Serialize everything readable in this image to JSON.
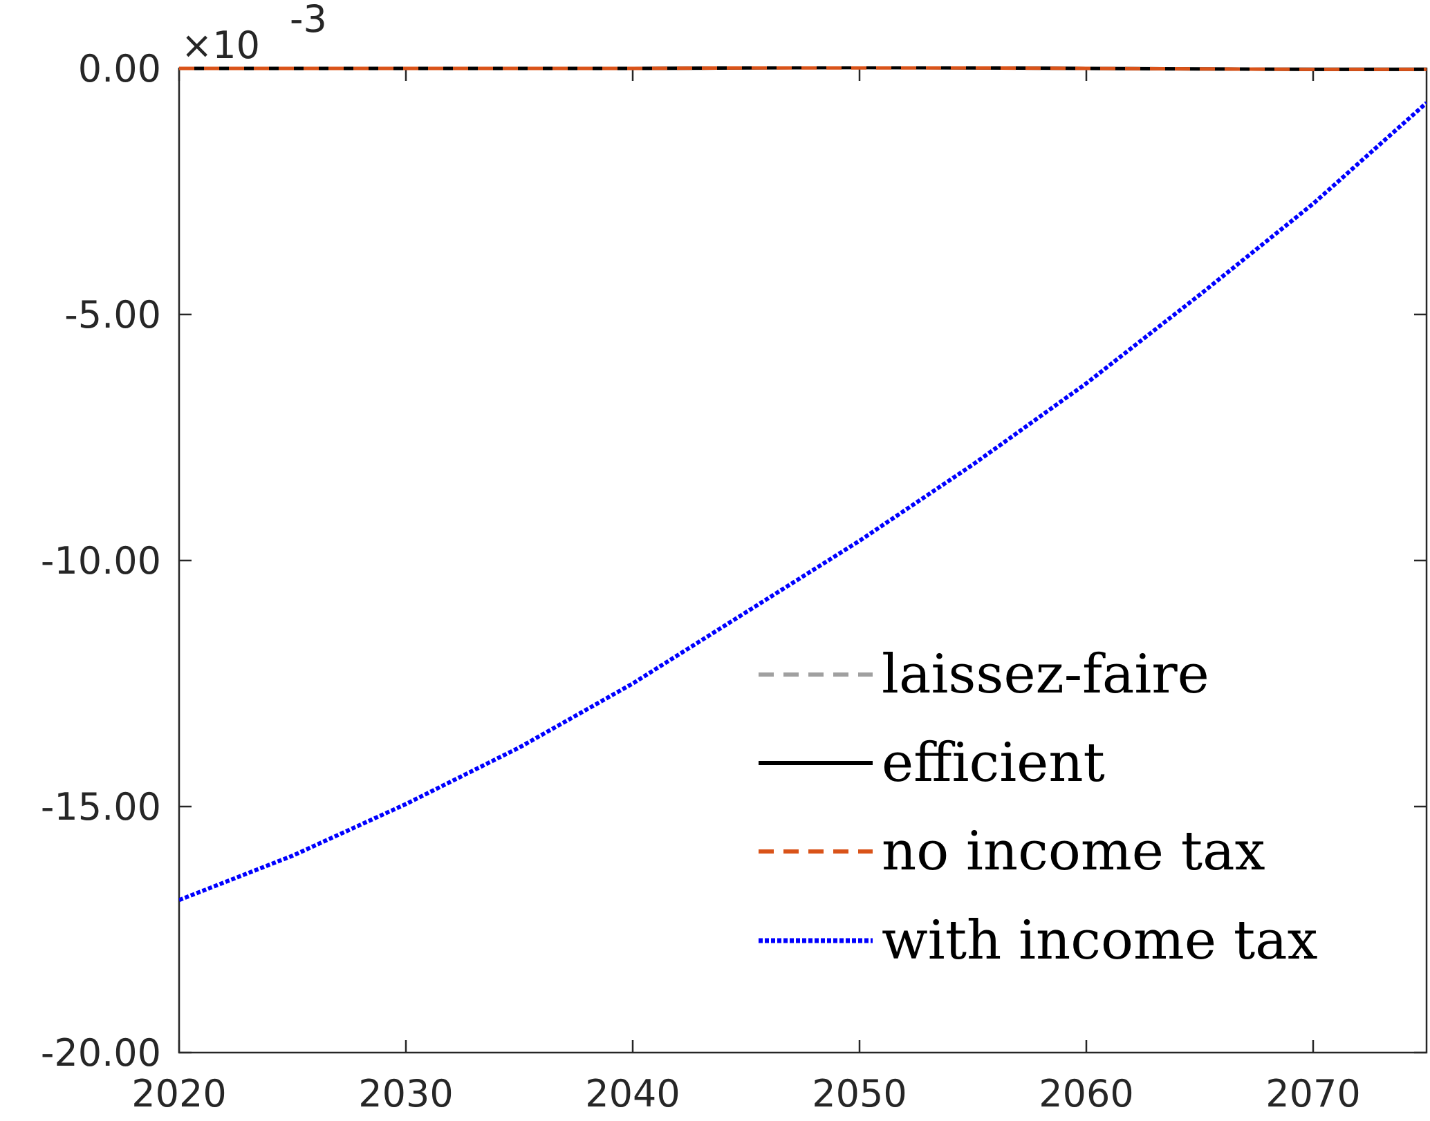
{
  "chart_data": {
    "type": "line",
    "title": "",
    "xlabel": "",
    "ylabel": "",
    "exponent_label": "×10",
    "exponent_power": "-3",
    "xlim": [
      2020,
      2075
    ],
    "ylim": [
      -20,
      0
    ],
    "x_ticks": [
      2020,
      2030,
      2040,
      2050,
      2060,
      2070
    ],
    "x_tick_labels": [
      "2020",
      "2030",
      "2040",
      "2050",
      "2060",
      "2070"
    ],
    "y_ticks": [
      0,
      -5,
      -10,
      -15,
      -20
    ],
    "y_tick_labels": [
      "0.00",
      "-5.00",
      "-10.00",
      "-15.00",
      "-20.00"
    ],
    "grid": false,
    "legend_position": "lower-right",
    "x": [
      2020,
      2025,
      2030,
      2035,
      2040,
      2045,
      2050,
      2055,
      2060,
      2065,
      2070,
      2075
    ],
    "series": [
      {
        "name": "laissez-faire",
        "color": "#a0a0a0",
        "style": "dashed",
        "values": [
          0,
          0,
          0,
          0,
          0,
          0.01,
          0.02,
          0.01,
          0,
          -0.01,
          -0.02,
          -0.02
        ]
      },
      {
        "name": "efficient",
        "color": "#000000",
        "style": "solid",
        "values": [
          0,
          0,
          0,
          0,
          0,
          0.01,
          0.02,
          0.01,
          0,
          -0.01,
          -0.02,
          -0.02
        ]
      },
      {
        "name": "no income tax",
        "color": "#d95319",
        "style": "dashed",
        "values": [
          0,
          0,
          0,
          0,
          0,
          0.01,
          0.01,
          0.01,
          0,
          -0.01,
          -0.02,
          -0.02
        ]
      },
      {
        "name": "with income tax",
        "color": "#0000ff",
        "style": "dotted",
        "values": [
          -16.9,
          -16.0,
          -14.95,
          -13.8,
          -12.5,
          -11.05,
          -9.6,
          -8.05,
          -6.4,
          -4.6,
          -2.75,
          -0.7
        ]
      }
    ]
  }
}
